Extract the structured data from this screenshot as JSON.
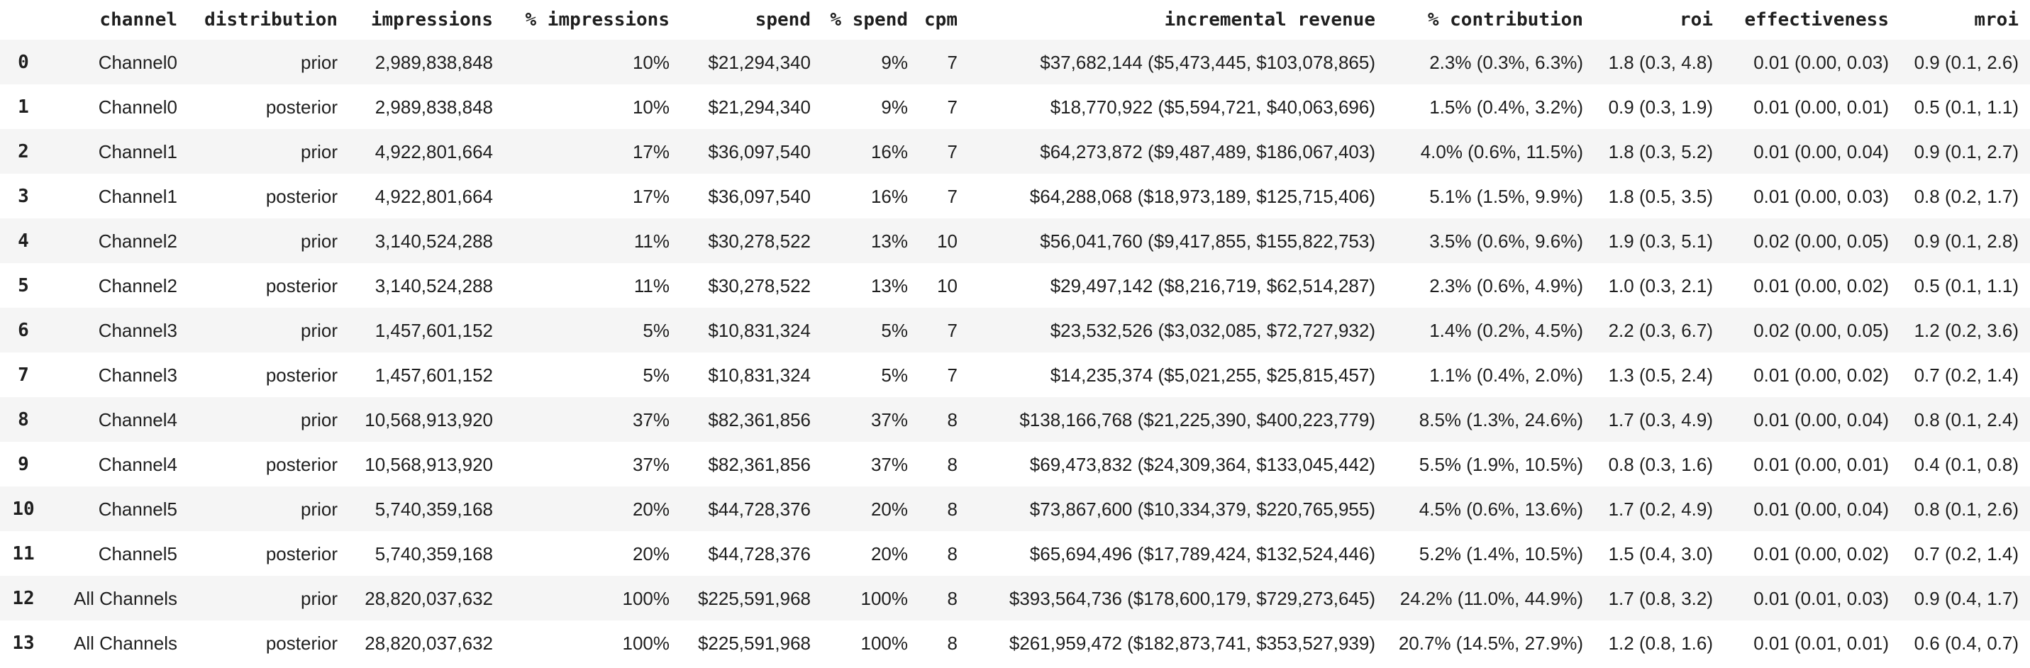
{
  "theme": {
    "background": "#ffffff",
    "row_alt_bg": "#f5f5f5",
    "text_color": "#1f1f1f"
  },
  "chart_data": {
    "type": "table",
    "title": "",
    "columns": [
      "",
      "channel",
      "distribution",
      "impressions",
      "% impressions",
      "spend",
      "% spend",
      "cpm",
      "incremental revenue",
      "% contribution",
      "roi",
      "effectiveness",
      "mroi"
    ],
    "rows": [
      [
        "0",
        "Channel0",
        "prior",
        "2,989,838,848",
        "10%",
        "$21,294,340",
        "9%",
        "7",
        "$37,682,144 ($5,473,445, $103,078,865)",
        "2.3% (0.3%, 6.3%)",
        "1.8 (0.3, 4.8)",
        "0.01 (0.00, 0.03)",
        "0.9 (0.1, 2.6)"
      ],
      [
        "1",
        "Channel0",
        "posterior",
        "2,989,838,848",
        "10%",
        "$21,294,340",
        "9%",
        "7",
        "$18,770,922 ($5,594,721, $40,063,696)",
        "1.5% (0.4%, 3.2%)",
        "0.9 (0.3, 1.9)",
        "0.01 (0.00, 0.01)",
        "0.5 (0.1, 1.1)"
      ],
      [
        "2",
        "Channel1",
        "prior",
        "4,922,801,664",
        "17%",
        "$36,097,540",
        "16%",
        "7",
        "$64,273,872 ($9,487,489, $186,067,403)",
        "4.0% (0.6%, 11.5%)",
        "1.8 (0.3, 5.2)",
        "0.01 (0.00, 0.04)",
        "0.9 (0.1, 2.7)"
      ],
      [
        "3",
        "Channel1",
        "posterior",
        "4,922,801,664",
        "17%",
        "$36,097,540",
        "16%",
        "7",
        "$64,288,068 ($18,973,189, $125,715,406)",
        "5.1% (1.5%, 9.9%)",
        "1.8 (0.5, 3.5)",
        "0.01 (0.00, 0.03)",
        "0.8 (0.2, 1.7)"
      ],
      [
        "4",
        "Channel2",
        "prior",
        "3,140,524,288",
        "11%",
        "$30,278,522",
        "13%",
        "10",
        "$56,041,760 ($9,417,855, $155,822,753)",
        "3.5% (0.6%, 9.6%)",
        "1.9 (0.3, 5.1)",
        "0.02 (0.00, 0.05)",
        "0.9 (0.1, 2.8)"
      ],
      [
        "5",
        "Channel2",
        "posterior",
        "3,140,524,288",
        "11%",
        "$30,278,522",
        "13%",
        "10",
        "$29,497,142 ($8,216,719, $62,514,287)",
        "2.3% (0.6%, 4.9%)",
        "1.0 (0.3, 2.1)",
        "0.01 (0.00, 0.02)",
        "0.5 (0.1, 1.1)"
      ],
      [
        "6",
        "Channel3",
        "prior",
        "1,457,601,152",
        "5%",
        "$10,831,324",
        "5%",
        "7",
        "$23,532,526 ($3,032,085, $72,727,932)",
        "1.4% (0.2%, 4.5%)",
        "2.2 (0.3, 6.7)",
        "0.02 (0.00, 0.05)",
        "1.2 (0.2, 3.6)"
      ],
      [
        "7",
        "Channel3",
        "posterior",
        "1,457,601,152",
        "5%",
        "$10,831,324",
        "5%",
        "7",
        "$14,235,374 ($5,021,255, $25,815,457)",
        "1.1% (0.4%, 2.0%)",
        "1.3 (0.5, 2.4)",
        "0.01 (0.00, 0.02)",
        "0.7 (0.2, 1.4)"
      ],
      [
        "8",
        "Channel4",
        "prior",
        "10,568,913,920",
        "37%",
        "$82,361,856",
        "37%",
        "8",
        "$138,166,768 ($21,225,390, $400,223,779)",
        "8.5% (1.3%, 24.6%)",
        "1.7 (0.3, 4.9)",
        "0.01 (0.00, 0.04)",
        "0.8 (0.1, 2.4)"
      ],
      [
        "9",
        "Channel4",
        "posterior",
        "10,568,913,920",
        "37%",
        "$82,361,856",
        "37%",
        "8",
        "$69,473,832 ($24,309,364, $133,045,442)",
        "5.5% (1.9%, 10.5%)",
        "0.8 (0.3, 1.6)",
        "0.01 (0.00, 0.01)",
        "0.4 (0.1, 0.8)"
      ],
      [
        "10",
        "Channel5",
        "prior",
        "5,740,359,168",
        "20%",
        "$44,728,376",
        "20%",
        "8",
        "$73,867,600 ($10,334,379, $220,765,955)",
        "4.5% (0.6%, 13.6%)",
        "1.7 (0.2, 4.9)",
        "0.01 (0.00, 0.04)",
        "0.8 (0.1, 2.6)"
      ],
      [
        "11",
        "Channel5",
        "posterior",
        "5,740,359,168",
        "20%",
        "$44,728,376",
        "20%",
        "8",
        "$65,694,496 ($17,789,424, $132,524,446)",
        "5.2% (1.4%, 10.5%)",
        "1.5 (0.4, 3.0)",
        "0.01 (0.00, 0.02)",
        "0.7 (0.2, 1.4)"
      ],
      [
        "12",
        "All Channels",
        "prior",
        "28,820,037,632",
        "100%",
        "$225,591,968",
        "100%",
        "8",
        "$393,564,736 ($178,600,179, $729,273,645)",
        "24.2% (11.0%, 44.9%)",
        "1.7 (0.8, 3.2)",
        "0.01 (0.01, 0.03)",
        "0.9 (0.4, 1.7)"
      ],
      [
        "13",
        "All Channels",
        "posterior",
        "28,820,037,632",
        "100%",
        "$225,591,968",
        "100%",
        "8",
        "$261,959,472 ($182,873,741, $353,527,939)",
        "20.7% (14.5%, 27.9%)",
        "1.2 (0.8, 1.6)",
        "0.01 (0.01, 0.01)",
        "0.6 (0.4, 0.7)"
      ]
    ]
  }
}
